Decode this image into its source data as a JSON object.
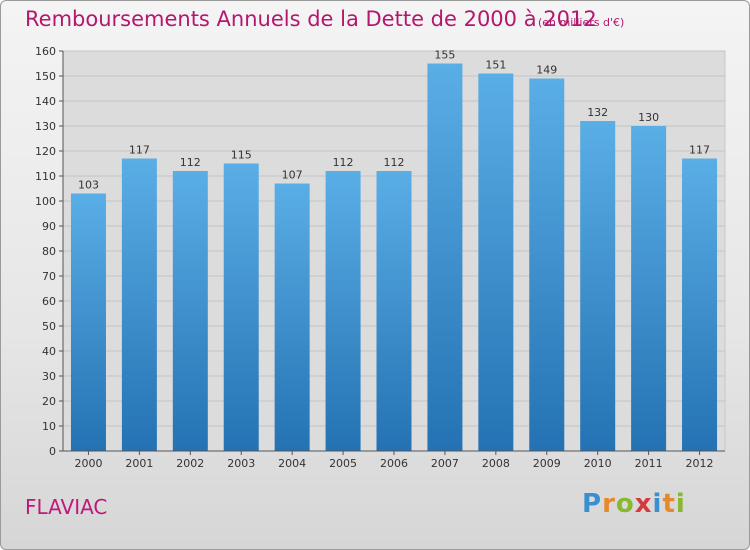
{
  "header": {
    "title": "Remboursements Annuels de la Dette de 2000 à 2012",
    "unit": "(en milliers d'€)"
  },
  "footer": {
    "city": "FLAVIAC",
    "logo_letters": [
      {
        "char": "P",
        "color": "#3a8fd0"
      },
      {
        "char": "r",
        "color": "#e6892a"
      },
      {
        "char": "o",
        "color": "#88b92c"
      },
      {
        "char": "x",
        "color": "#d53b3b"
      },
      {
        "char": "i",
        "color": "#3a8fd0"
      },
      {
        "char": "t",
        "color": "#e6892a"
      },
      {
        "char": "i",
        "color": "#88b92c"
      }
    ]
  },
  "colors": {
    "bar_top": "#5aaee6",
    "bar_bottom": "#2472b3",
    "title": "#b3176e"
  },
  "chart_data": {
    "type": "bar",
    "title": "Remboursements Annuels de la Dette de 2000 à 2012",
    "categories": [
      "2000",
      "2001",
      "2002",
      "2003",
      "2004",
      "2005",
      "2006",
      "2007",
      "2008",
      "2009",
      "2010",
      "2011",
      "2012"
    ],
    "values": [
      103,
      117,
      112,
      115,
      107,
      112,
      112,
      155,
      151,
      149,
      132,
      130,
      117
    ],
    "ylim": [
      0,
      160
    ],
    "yticks": [
      0,
      10,
      20,
      30,
      40,
      50,
      60,
      70,
      80,
      90,
      100,
      110,
      120,
      130,
      140,
      150,
      160
    ],
    "grid": true,
    "legend": "none"
  }
}
